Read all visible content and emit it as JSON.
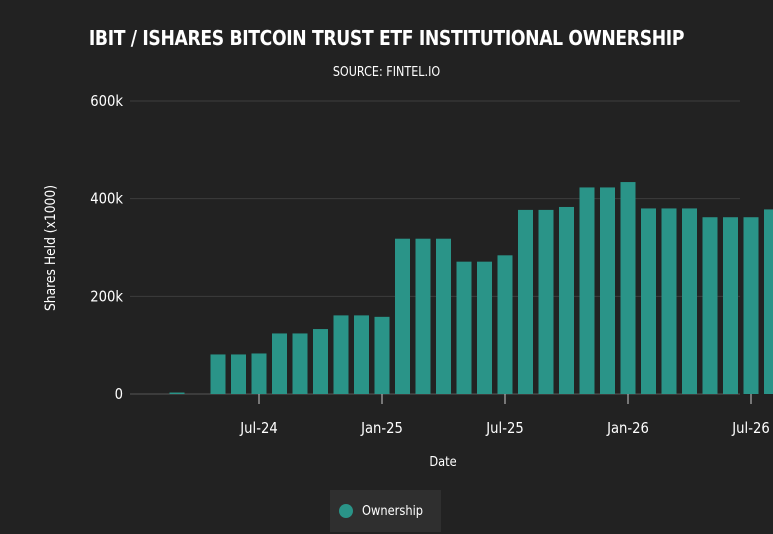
{
  "colors": {
    "background": "#222222",
    "bar": "#2a9488",
    "grid": "#3d3d3d",
    "axis": "#cccccc",
    "text": "#ffffff"
  },
  "chart_data": {
    "type": "bar",
    "title": "IBIT / ISHARES BITCOIN TRUST ETF INSTITUTIONAL OWNERSHIP",
    "subtitle": "SOURCE: FINTEL.IO",
    "xlabel": "Date",
    "ylabel": "Shares Held (x1000)",
    "ylim": [
      0,
      600000
    ],
    "yticks": [
      0,
      200000,
      400000,
      600000
    ],
    "ytick_labels": [
      "0",
      "200k",
      "400k",
      "600k"
    ],
    "x_tick_labels": [
      "Jul-24",
      "Jan-25",
      "Jul-25",
      "Jan-26",
      "Jul-26"
    ],
    "x_tick_dates": [
      "2024-07",
      "2025-01",
      "2025-07",
      "2026-01",
      "2026-07"
    ],
    "grid": true,
    "legend_position": "bottom",
    "categories": [
      "2024-03",
      "2024-05",
      "2024-06",
      "2024-07",
      "2024-08",
      "2024-09",
      "2024-10",
      "2024-11",
      "2024-12",
      "2025-01",
      "2025-02",
      "2025-03",
      "2025-04",
      "2025-05",
      "2025-06",
      "2025-07",
      "2025-08",
      "2025-09",
      "2025-10",
      "2025-11",
      "2025-12",
      "2026-01",
      "2026-02",
      "2026-03",
      "2026-04",
      "2026-05",
      "2026-06",
      "2026-07",
      "2026-08"
    ],
    "series": [
      {
        "name": "Ownership",
        "values": [
          3000,
          81000,
          81000,
          83000,
          124000,
          124000,
          133000,
          161000,
          161000,
          158000,
          318000,
          318000,
          318000,
          271000,
          271000,
          284000,
          377000,
          377000,
          383000,
          423000,
          423000,
          434000,
          380000,
          380000,
          380000,
          362000,
          362000,
          362000,
          378000
        ]
      }
    ]
  },
  "legend": {
    "label": "Ownership"
  }
}
